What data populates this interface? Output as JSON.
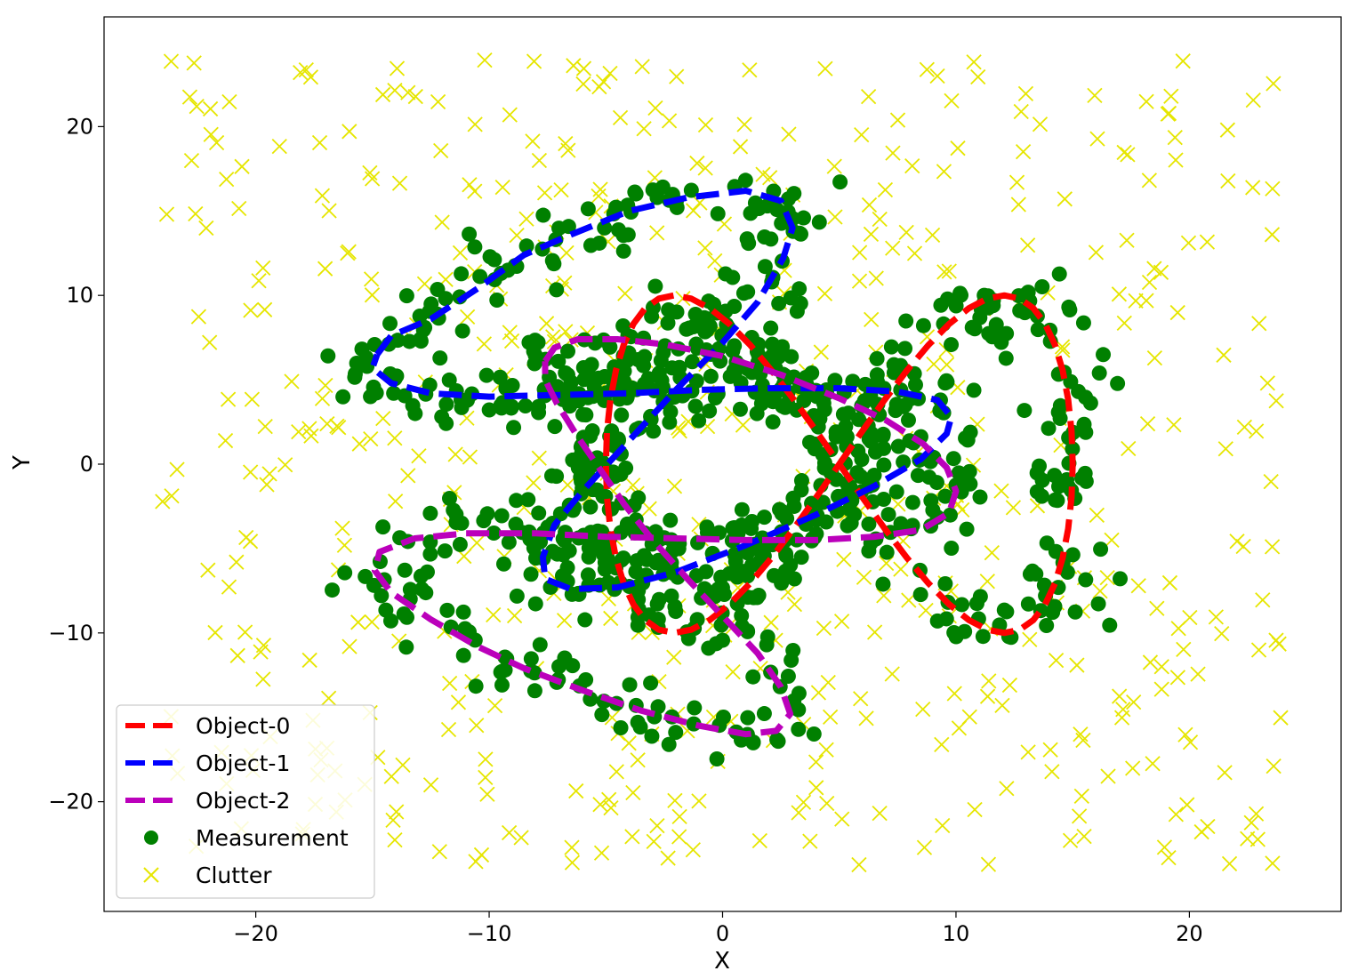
{
  "chart_data": {
    "type": "scatter",
    "xlabel": "X",
    "ylabel": "Y",
    "xlim": [
      -26.5,
      26.5
    ],
    "ylim": [
      -26.5,
      26.5
    ],
    "xticks": [
      -20,
      -10,
      0,
      10,
      20
    ],
    "yticks": [
      20,
      10,
      0,
      -10,
      -20
    ],
    "xtick_labels": [
      "−20",
      "−10",
      "0",
      "10",
      "20"
    ],
    "ytick_labels": [
      "20",
      "10",
      "0",
      "−10",
      "−20"
    ],
    "grid": false,
    "legend_position": "lower-left",
    "series": [
      {
        "name": "Object-0",
        "kind": "line",
        "style": "dashed",
        "color": "#ff0000",
        "shape": "figure-eight",
        "center": [
          5,
          0
        ],
        "x_amplitude": 10,
        "y_amplitude": 10,
        "samples": 64
      },
      {
        "name": "Object-1",
        "kind": "line",
        "style": "dashed",
        "color": "#0000ff",
        "shape": "tilted-figure-eight",
        "points": [
          [
            -14.8,
            6.5
          ],
          [
            -14.2,
            7.6
          ],
          [
            -12.5,
            8.6
          ],
          [
            -10.5,
            10.4
          ],
          [
            -8.5,
            12.4
          ],
          [
            -6.5,
            13.6
          ],
          [
            -4,
            15
          ],
          [
            -1.5,
            15.8
          ],
          [
            1,
            16.2
          ],
          [
            2.5,
            15.6
          ],
          [
            3,
            14
          ],
          [
            2.6,
            12.2
          ],
          [
            1.5,
            9.6
          ],
          [
            0,
            7.2
          ],
          [
            -2,
            4.4
          ],
          [
            -4,
            1.4
          ],
          [
            -6,
            -1.6
          ],
          [
            -7.2,
            -3.6
          ],
          [
            -7.7,
            -5.5
          ],
          [
            -7.6,
            -6.8
          ],
          [
            -6.5,
            -7.4
          ],
          [
            -4.5,
            -7.3
          ],
          [
            -2,
            -6.4
          ],
          [
            1,
            -4.8
          ],
          [
            4,
            -3
          ],
          [
            6.5,
            -1.3
          ],
          [
            8.5,
            0.3
          ],
          [
            9.6,
            1.8
          ],
          [
            9.8,
            2.8
          ],
          [
            9.2,
            3.8
          ],
          [
            7.5,
            4.3
          ],
          [
            5,
            4.5
          ],
          [
            2,
            4.5
          ],
          [
            -1,
            4.4
          ],
          [
            -4,
            4.2
          ],
          [
            -7,
            4.1
          ],
          [
            -10,
            4
          ],
          [
            -12.5,
            4.2
          ],
          [
            -14.2,
            4.8
          ],
          [
            -15,
            5.7
          ],
          [
            -14.8,
            6.5
          ]
        ]
      },
      {
        "name": "Object-2",
        "kind": "line",
        "style": "dashed",
        "color": "#bb00bb",
        "shape": "tilted-figure-eight",
        "points": [
          [
            -7.6,
            6.1
          ],
          [
            -7.2,
            6.9
          ],
          [
            -6.2,
            7.4
          ],
          [
            -4.5,
            7.4
          ],
          [
            -2.5,
            7.1
          ],
          [
            0,
            6.4
          ],
          [
            2.5,
            5.3
          ],
          [
            5,
            3.9
          ],
          [
            7,
            2.6
          ],
          [
            8.6,
            1.2
          ],
          [
            9.6,
            -0.2
          ],
          [
            10,
            -1.6
          ],
          [
            9.7,
            -2.9
          ],
          [
            8.5,
            -3.9
          ],
          [
            6.5,
            -4.3
          ],
          [
            4,
            -4.5
          ],
          [
            1,
            -4.5
          ],
          [
            -2,
            -4.4
          ],
          [
            -5,
            -4.3
          ],
          [
            -8,
            -4.1
          ],
          [
            -11,
            -4.1
          ],
          [
            -13.2,
            -4.4
          ],
          [
            -14.7,
            -5.2
          ],
          [
            -14.9,
            -6.3
          ],
          [
            -14.2,
            -7.6
          ],
          [
            -12.5,
            -9.2
          ],
          [
            -10.5,
            -10.8
          ],
          [
            -8.5,
            -12.1
          ],
          [
            -6,
            -13.4
          ],
          [
            -3.5,
            -14.6
          ],
          [
            -1,
            -15.5
          ],
          [
            1,
            -16
          ],
          [
            2.3,
            -15.8
          ],
          [
            2.9,
            -14.8
          ],
          [
            2.5,
            -13.2
          ],
          [
            1.5,
            -11.2
          ],
          [
            0,
            -9
          ],
          [
            -1.5,
            -6.8
          ],
          [
            -3,
            -4.5
          ],
          [
            -4.2,
            -2.4
          ],
          [
            -5.2,
            -0.4
          ],
          [
            -6.2,
            1.6
          ],
          [
            -7.1,
            3.6
          ],
          [
            -7.6,
            5
          ],
          [
            -7.6,
            6.1
          ]
        ]
      },
      {
        "name": "Measurement",
        "kind": "scatter",
        "marker": "circle",
        "color": "#008000",
        "description": "noisy detections along the three object tracks",
        "count": 950,
        "noise_std": 1.2
      },
      {
        "name": "Clutter",
        "kind": "scatter",
        "marker": "x",
        "color": "#e6e600",
        "description": "uniform false alarms",
        "count": 560,
        "spread": [
          -24,
          24
        ]
      }
    ],
    "legend": [
      "Object-0",
      "Object-1",
      "Object-2",
      "Measurement",
      "Clutter"
    ]
  }
}
